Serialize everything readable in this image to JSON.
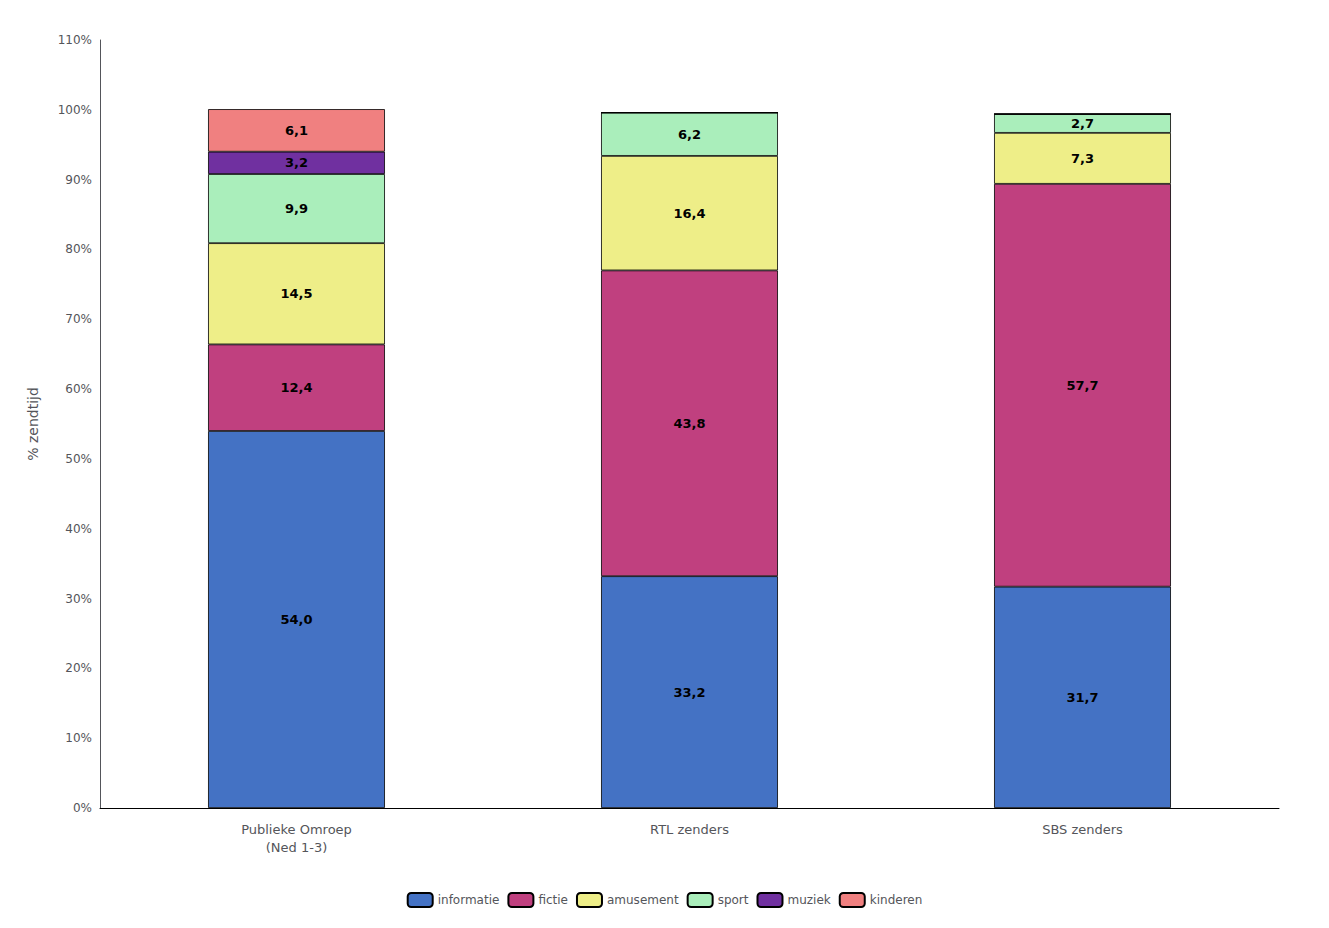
{
  "chart_data": {
    "type": "bar",
    "stacked": true,
    "data_labels": true,
    "grid": false,
    "legend": "bottom",
    "ylabel": "% zendtijd",
    "categories": [
      "Publieke Omroep\n(Ned 1-3)",
      "RTL zenders",
      "SBS zenders"
    ],
    "series": [
      {
        "name": "informatie",
        "color": "#4472C4",
        "values": [
          54.0,
          33.2,
          31.7
        ],
        "value_labels": [
          "54,0",
          "33,2",
          "31,7"
        ]
      },
      {
        "name": "fictie",
        "color": "#C0407F",
        "values": [
          12.4,
          43.8,
          57.7
        ],
        "value_labels": [
          "12,4",
          "43,8",
          "57,7"
        ]
      },
      {
        "name": "amusement",
        "color": "#EEEE88",
        "values": [
          14.5,
          16.4,
          7.3
        ],
        "value_labels": [
          "14,5",
          "16,4",
          "7,3"
        ]
      },
      {
        "name": "sport",
        "color": "#AAEEBB",
        "values": [
          9.9,
          6.2,
          2.7
        ],
        "value_labels": [
          "9,9",
          "6,2",
          "2,7"
        ]
      },
      {
        "name": "muziek",
        "color": "#7030A0",
        "values": [
          3.2,
          0.0,
          0.0
        ],
        "value_labels": [
          "3,2",
          null,
          null
        ]
      },
      {
        "name": "kinderen",
        "color": "#F08080",
        "values": [
          6.1,
          0.0,
          0.0
        ],
        "value_labels": [
          "6,1",
          null,
          null
        ]
      }
    ],
    "ylim": [
      0,
      110
    ],
    "yticks": [
      {
        "value": 0,
        "label": "0%"
      },
      {
        "value": 10,
        "label": "10%"
      },
      {
        "value": 20,
        "label": "20%"
      },
      {
        "value": 30,
        "label": "30%"
      },
      {
        "value": 40,
        "label": "40%"
      },
      {
        "value": 50,
        "label": "50%"
      },
      {
        "value": 60,
        "label": "60%"
      },
      {
        "value": 70,
        "label": "70%"
      },
      {
        "value": 80,
        "label": "80%"
      },
      {
        "value": 90,
        "label": "90%"
      },
      {
        "value": 100,
        "label": "100%"
      },
      {
        "value": 110,
        "label": "110%"
      }
    ]
  }
}
